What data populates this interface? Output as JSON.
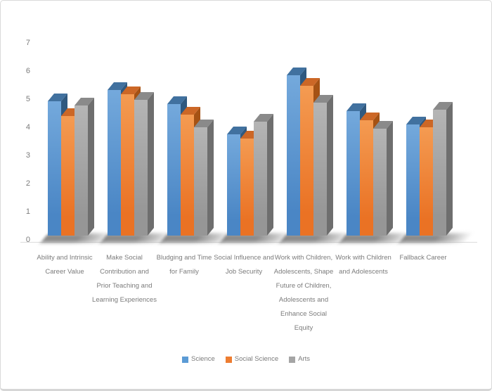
{
  "chart_data": {
    "type": "bar",
    "subtype": "3d-clustered-column",
    "title": "",
    "xlabel": "",
    "ylabel": "",
    "gridlines": false,
    "y_axis": {
      "min": 0,
      "max": 7,
      "step": 1,
      "ticks": [
        0,
        1,
        2,
        3,
        4,
        5,
        6,
        7
      ]
    },
    "legend": {
      "position": "bottom",
      "items": [
        "Science",
        "Social Science",
        "Arts"
      ]
    },
    "categories": [
      "Ability and Intrinsic Career Value",
      "Make Social Contribution and Prior Teaching and Learning Experiences",
      "Bludging and Time for Family",
      "Social Influence and Job Security",
      "Work with Children, Adolescents, Shape Future of Children, Adolescents and Enhance Social Equity",
      "Work with Children and Adolescents",
      "Fallback Career"
    ],
    "category_label_lines": [
      [
        "Ability and Intrinsic",
        "Career Value"
      ],
      [
        "Make Social",
        "Contribution and",
        "Prior Teaching and",
        "Learning Experiences"
      ],
      [
        "Bludging and Time",
        "for Family"
      ],
      [
        "Social Influence and",
        "Job Security"
      ],
      [
        "Work with Children,",
        "Adolescents, Shape",
        "Future of Children,",
        "Adolescents and",
        "Enhance Social",
        "Equity"
      ],
      [
        "Work with Children",
        "and Adolescents"
      ],
      [
        "Fallback Career"
      ]
    ],
    "series": [
      {
        "name": "Science",
        "color": "#5B9BD5",
        "front_gradient": [
          "#74A9DC",
          "#4A86C5"
        ],
        "top_color": "#41719F",
        "side_color": "#30597F",
        "values": [
          4.9,
          5.3,
          4.8,
          3.7,
          5.85,
          4.55,
          4.05
        ]
      },
      {
        "name": "Social Science",
        "color": "#ED7D31",
        "front_gradient": [
          "#F49B52",
          "#EA7224"
        ],
        "top_color": "#CC6726",
        "side_color": "#A55214",
        "values": [
          4.35,
          5.15,
          4.4,
          3.55,
          5.45,
          4.2,
          3.95
        ]
      },
      {
        "name": "Arts",
        "color": "#A5A5A5",
        "front_gradient": [
          "#B5B5B5",
          "#969696"
        ],
        "top_color": "#8A8A8A",
        "side_color": "#6E6E6E",
        "values": [
          4.75,
          4.95,
          3.95,
          4.15,
          4.85,
          3.9,
          4.6
        ]
      }
    ],
    "text_color": "#7B7B7B"
  }
}
